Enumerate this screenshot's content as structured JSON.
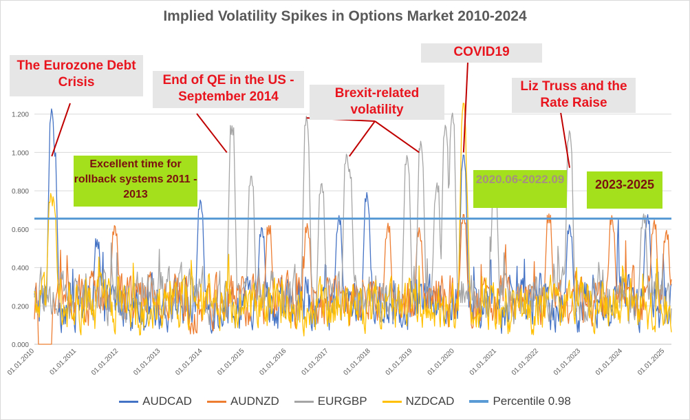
{
  "chart_data": {
    "type": "line",
    "title": "Implied Volatility Spikes in Options Market 2010-2024",
    "xlabel": "",
    "ylabel": "",
    "ylim": [
      0,
      1.4
    ],
    "yticks": [
      "0.000",
      "0.200",
      "0.400",
      "0.600",
      "0.800",
      "1.000",
      "1.200"
    ],
    "xticks": [
      "01.01.2010",
      "01.01.2011",
      "01.01.2012",
      "01.01.2013",
      "01.01.2014",
      "01.01.2015",
      "01.01.2016",
      "01.01.2017",
      "01.01.2018",
      "01.01.2019",
      "01.01.2020",
      "01.01.2021",
      "01.01.2022",
      "01.01.2023",
      "01.01.2024",
      "01.01.2025"
    ],
    "legend_position": "bottom",
    "series": [
      {
        "name": "AUDCAD",
        "color": "#4472c4",
        "base": 0.21,
        "spikes": [
          [
            "2010-06-01",
            1.24
          ],
          [
            "2010-06-20",
            1.03
          ],
          [
            "2011-07-01",
            0.55
          ],
          [
            "2013-12-15",
            0.77
          ],
          [
            "2015-06-01",
            0.63
          ],
          [
            "2017-04-01",
            0.68
          ],
          [
            "2017-12-01",
            0.8
          ],
          [
            "2020-03-20",
            1.01
          ],
          [
            "2022-09-28",
            0.64
          ],
          [
            "2024-08-05",
            0.69
          ]
        ]
      },
      {
        "name": "AUDNZD",
        "color": "#ed7d31",
        "base": 0.22,
        "spikes": [
          [
            "2011-12-01",
            0.64
          ],
          [
            "2015-08-01",
            0.62
          ],
          [
            "2016-07-01",
            0.64
          ],
          [
            "2018-06-01",
            0.64
          ],
          [
            "2019-03-01",
            0.62
          ],
          [
            "2020-03-20",
            0.7
          ],
          [
            "2022-04-01",
            0.68
          ],
          [
            "2023-10-01",
            0.68
          ],
          [
            "2024-10-01",
            0.66
          ],
          [
            "2025-01-15",
            0.61
          ]
        ]
      },
      {
        "name": "EURGBP",
        "color": "#a5a5a5",
        "base": 0.25,
        "spikes": [
          [
            "2014-09-15",
            1.14
          ],
          [
            "2015-03-01",
            0.9
          ],
          [
            "2016-06-24",
            1.2
          ],
          [
            "2016-11-01",
            0.86
          ],
          [
            "2017-06-08",
            1.01
          ],
          [
            "2017-07-01",
            0.93
          ],
          [
            "2018-11-15",
            1.0
          ],
          [
            "2019-03-15",
            1.07
          ],
          [
            "2019-08-01",
            0.85
          ],
          [
            "2019-10-15",
            1.16
          ],
          [
            "2019-12-13",
            1.22
          ],
          [
            "2020-12-15",
            0.86
          ],
          [
            "2022-09-28",
            1.13
          ],
          [
            "2024-07-01",
            0.69
          ]
        ]
      },
      {
        "name": "NZDCAD",
        "color": "#ffc000",
        "base": 0.2,
        "spikes": [
          [
            "2010-05-25",
            0.8
          ],
          [
            "2010-06-15",
            0.78
          ],
          [
            "2020-03-20",
            1.28
          ],
          [
            "2020-04-01",
            0.95
          ]
        ]
      },
      {
        "name": "Percentile 0.98",
        "color": "#5b9bd5",
        "constant": 0.655
      }
    ],
    "annotations": [
      {
        "text": "The Eurozone Debt Crisis",
        "point": [
          "2010-06-01",
          0.98
        ]
      },
      {
        "text": "End of QE in the US - September 2014",
        "point": [
          "2014-08-01",
          1.0
        ]
      },
      {
        "text": "Brexit-related volatility",
        "points": [
          [
            "2016-06-24",
            1.18
          ],
          [
            "2017-07-01",
            0.98
          ],
          [
            "2019-03-01",
            1.0
          ]
        ]
      },
      {
        "text": "COVID19",
        "point": [
          "2020-03-20",
          1.0
        ]
      },
      {
        "text": "Liz Truss and the Rate Raise",
        "point": [
          "2022-09-28",
          0.92
        ]
      }
    ],
    "highlight_boxes": [
      {
        "text": "Excellent time for rollback systems 2011 - 2013"
      },
      {
        "text": "2020.06-2022.09"
      },
      {
        "text": "2023-2025"
      }
    ]
  }
}
